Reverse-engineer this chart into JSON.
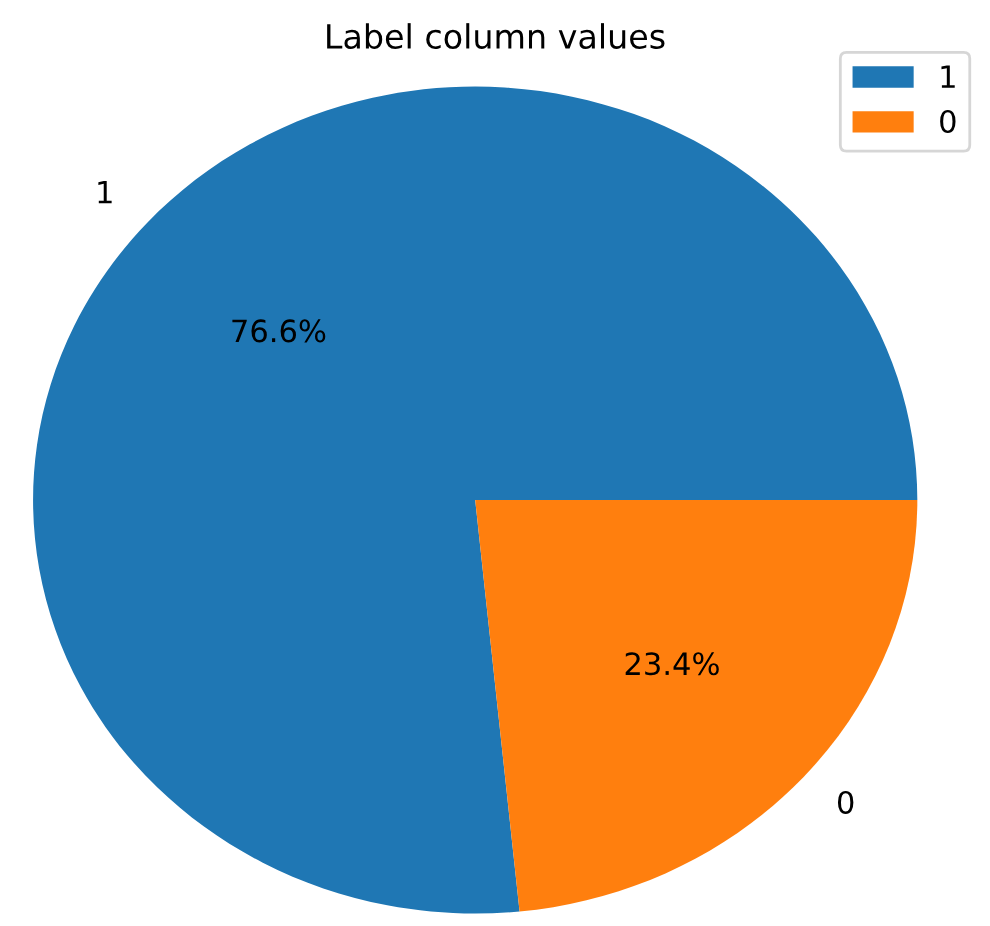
{
  "chart_data": {
    "type": "pie",
    "title": "Label column values",
    "categories": [
      "1",
      "0"
    ],
    "values": [
      76.6,
      23.4
    ],
    "colors": [
      "#1f77b4",
      "#ff7f0e"
    ],
    "value_labels": [
      "76.6%",
      "23.4%"
    ],
    "legend": "top right"
  }
}
